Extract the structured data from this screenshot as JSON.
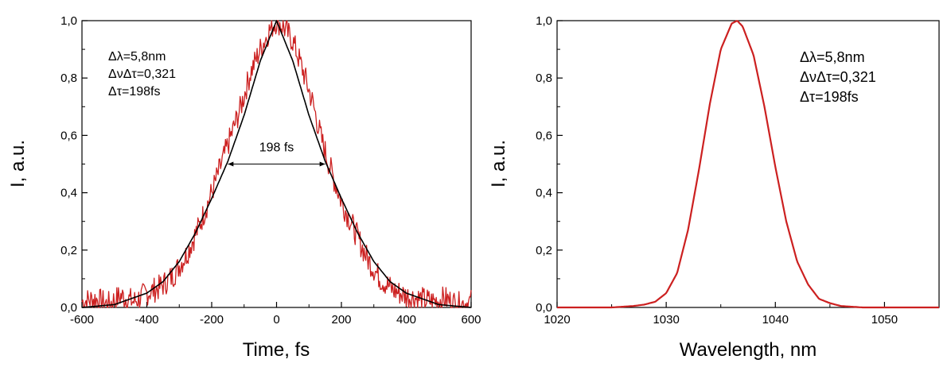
{
  "chart_data": [
    {
      "type": "line",
      "xlabel": "Time, fs",
      "ylabel": "I, a.u.",
      "xlim": [
        -600,
        600
      ],
      "ylim": [
        0,
        1.0
      ],
      "x_ticks": [
        "-600",
        "-400",
        "-200",
        "0",
        "200",
        "400",
        "600"
      ],
      "y_ticks": [
        "0,0",
        "0,2",
        "0,4",
        "0,6",
        "0,8",
        "1,0"
      ],
      "grid": false,
      "annotations": [
        "Δλ=5,8nm",
        "ΔνΔτ=0,321",
        "Δτ=198fs"
      ],
      "fwhm_label": "198 fs",
      "fwhm_range": [
        -150,
        150
      ],
      "series": [
        {
          "color": "#cc2020",
          "x": [
            -600,
            -560,
            -520,
            -480,
            -440,
            -400,
            -360,
            -320,
            -280,
            -240,
            -200,
            -170,
            -140,
            -110,
            -80,
            -50,
            -20,
            0,
            20,
            50,
            80,
            110,
            140,
            170,
            200,
            240,
            280,
            320,
            360,
            400,
            440,
            480,
            520,
            560,
            600
          ],
          "y": [
            0.02,
            0.03,
            0.01,
            0.04,
            0.02,
            0.05,
            0.07,
            0.11,
            0.18,
            0.28,
            0.4,
            0.5,
            0.6,
            0.7,
            0.82,
            0.9,
            0.97,
            1.0,
            0.98,
            0.93,
            0.83,
            0.72,
            0.58,
            0.47,
            0.37,
            0.27,
            0.17,
            0.1,
            0.06,
            0.04,
            0.03,
            0.02,
            0.03,
            0.01,
            0.02
          ]
        },
        {
          "color": "#000000",
          "x": [
            -600,
            -500,
            -400,
            -350,
            -300,
            -250,
            -200,
            -150,
            -100,
            -50,
            0,
            50,
            100,
            150,
            200,
            250,
            300,
            350,
            400,
            500,
            600
          ],
          "y": [
            0.0,
            0.01,
            0.05,
            0.09,
            0.16,
            0.26,
            0.38,
            0.51,
            0.67,
            0.86,
            1.0,
            0.86,
            0.67,
            0.51,
            0.38,
            0.26,
            0.16,
            0.09,
            0.05,
            0.01,
            0.0
          ]
        }
      ]
    },
    {
      "type": "line",
      "xlabel": "Wavelength, nm",
      "ylabel": "I, a.u.",
      "xlim": [
        1020,
        1055
      ],
      "ylim": [
        0,
        1.0
      ],
      "x_ticks": [
        "1020",
        "1030",
        "1040",
        "1050"
      ],
      "y_ticks": [
        "0,0",
        "0,2",
        "0,4",
        "0,6",
        "0,8",
        "1,0"
      ],
      "grid": false,
      "annotations": [
        "Δλ=5,8nm",
        "ΔνΔτ=0,321",
        "Δτ=198fs"
      ],
      "series": [
        {
          "color": "#cc2020",
          "x": [
            1020,
            1025,
            1027,
            1028,
            1029,
            1030,
            1031,
            1032,
            1033,
            1034,
            1035,
            1036,
            1036.5,
            1037,
            1038,
            1039,
            1040,
            1041,
            1042,
            1043,
            1044,
            1045,
            1046,
            1048,
            1050,
            1055
          ],
          "y": [
            0.0,
            0.0,
            0.005,
            0.01,
            0.02,
            0.05,
            0.12,
            0.27,
            0.48,
            0.71,
            0.9,
            0.99,
            1.0,
            0.98,
            0.88,
            0.7,
            0.49,
            0.3,
            0.16,
            0.08,
            0.03,
            0.015,
            0.005,
            0.0,
            0.0,
            0.0
          ]
        }
      ]
    }
  ]
}
